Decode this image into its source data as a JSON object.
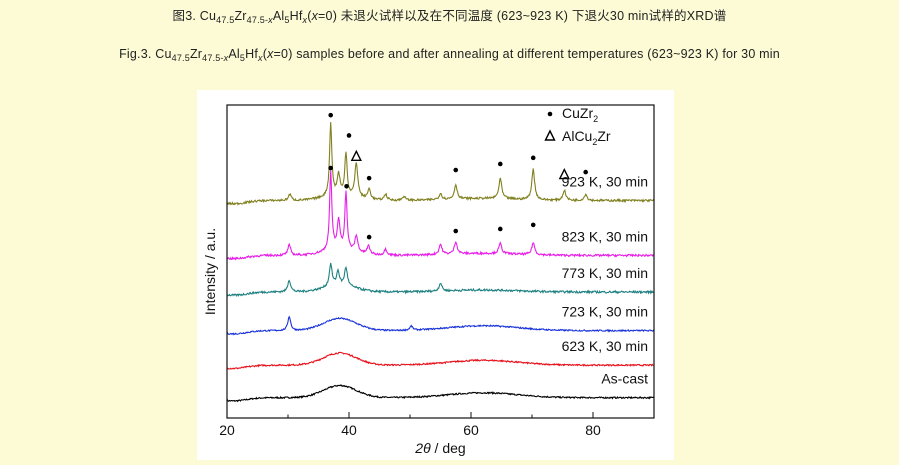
{
  "caption": {
    "zh_prefix": "图3. ",
    "zh_suffix": " 未退火试样以及在不同温度 (623~923 K) 下退火30 min试样的XRD谱",
    "en_prefix": "Fig.3. ",
    "en_suffix": " samples before and after annealing at different temperatures (623~923 K) for 30 min",
    "formula_parts": [
      {
        "t": "Cu"
      },
      {
        "t": "47.5",
        "sub": true
      },
      {
        "t": "Zr"
      },
      {
        "t": "47.5-",
        "sub": true
      },
      {
        "t": "x",
        "sub": true,
        "italic": true
      },
      {
        "t": "Al"
      },
      {
        "t": "5",
        "sub": true
      },
      {
        "t": "Hf"
      },
      {
        "t": "x",
        "sub": true,
        "italic": true
      },
      {
        "t": "("
      },
      {
        "t": "x",
        "italic": true
      },
      {
        "t": "=0)"
      }
    ]
  },
  "chart_data": {
    "type": "line",
    "xlabel_symbol": "2θ",
    "xlabel_unit": " / deg",
    "ylabel": "Intensity / a.u.",
    "xlim": [
      20,
      90
    ],
    "xticks": [
      20,
      40,
      60,
      80
    ],
    "legend": [
      {
        "symbol": "•",
        "label": "CuZr",
        "sub": "2"
      },
      {
        "symbol": "Δ",
        "label": "AlCu",
        "sub": "2",
        "label2": "Zr"
      }
    ],
    "series": [
      {
        "name": "As-cast",
        "color": "#000000",
        "baseline": 0.5,
        "type": "amorphous",
        "peaks": []
      },
      {
        "name": "623 K, 30 min",
        "color": "#e8111b",
        "baseline": 1.3,
        "type": "amorphous",
        "peaks": []
      },
      {
        "name": "723 K, 30 min",
        "color": "#1a33d9",
        "baseline": 2.15,
        "type": "amorphous",
        "peaks": [
          {
            "x": 30.2,
            "h": 0.35
          },
          {
            "x": 50.2,
            "h": 0.1
          }
        ]
      },
      {
        "name": "773 K, 30 min",
        "color": "#1e8080",
        "baseline": 3.1,
        "type": "partial",
        "peaks": [
          {
            "x": 30.2,
            "h": 0.3
          },
          {
            "x": 37.0,
            "h": 0.55
          },
          {
            "x": 38.2,
            "h": 0.35
          },
          {
            "x": 39.5,
            "h": 0.45
          },
          {
            "x": 55.0,
            "h": 0.2
          }
        ]
      },
      {
        "name": "823 K, 30 min",
        "color": "#e81ee8",
        "baseline": 4.0,
        "type": "crystalline",
        "peaks": [
          {
            "x": 30.2,
            "h": 0.25
          },
          {
            "x": 37.0,
            "h": 1.95
          },
          {
            "x": 38.3,
            "h": 0.7
          },
          {
            "x": 39.5,
            "h": 1.4
          },
          {
            "x": 41.2,
            "h": 0.4
          },
          {
            "x": 43.2,
            "h": 0.2
          },
          {
            "x": 46.0,
            "h": 0.15
          },
          {
            "x": 55.0,
            "h": 0.25
          },
          {
            "x": 57.5,
            "h": 0.3
          },
          {
            "x": 64.8,
            "h": 0.25
          },
          {
            "x": 70.2,
            "h": 0.3
          }
        ]
      },
      {
        "name": "923 K, 30 min",
        "color": "#808020",
        "baseline": 5.35,
        "type": "crystalline",
        "peaks": [
          {
            "x": 30.3,
            "h": 0.15
          },
          {
            "x": 37.0,
            "h": 1.8
          },
          {
            "x": 38.3,
            "h": 0.5
          },
          {
            "x": 39.5,
            "h": 1.05
          },
          {
            "x": 41.2,
            "h": 0.85
          },
          {
            "x": 43.3,
            "h": 0.25
          },
          {
            "x": 46.0,
            "h": 0.15
          },
          {
            "x": 49.0,
            "h": 0.1
          },
          {
            "x": 55.0,
            "h": 0.15
          },
          {
            "x": 57.5,
            "h": 0.35
          },
          {
            "x": 64.8,
            "h": 0.5
          },
          {
            "x": 70.2,
            "h": 0.75
          },
          {
            "x": 75.3,
            "h": 0.25
          },
          {
            "x": 78.8,
            "h": 0.15
          }
        ]
      }
    ],
    "markers": [
      {
        "type": "dot",
        "x": 37.0,
        "y": 7.45
      },
      {
        "type": "dot",
        "x": 40.0,
        "y": 6.95
      },
      {
        "type": "tri",
        "x": 41.2,
        "y": 6.45
      },
      {
        "type": "dot",
        "x": 43.3,
        "y": 5.9
      },
      {
        "type": "dot",
        "x": 57.5,
        "y": 6.1
      },
      {
        "type": "dot",
        "x": 64.8,
        "y": 6.25
      },
      {
        "type": "dot",
        "x": 70.2,
        "y": 6.4
      },
      {
        "type": "tri",
        "x": 75.3,
        "y": 6.0
      },
      {
        "type": "dot",
        "x": 78.8,
        "y": 6.05
      },
      {
        "type": "dot",
        "x": 37.0,
        "y": 6.15
      },
      {
        "type": "dot",
        "x": 39.6,
        "y": 5.7
      },
      {
        "type": "dot",
        "x": 43.3,
        "y": 4.45
      },
      {
        "type": "dot",
        "x": 57.5,
        "y": 4.6
      },
      {
        "type": "dot",
        "x": 64.8,
        "y": 4.65
      },
      {
        "type": "dot",
        "x": 70.2,
        "y": 4.75
      }
    ]
  }
}
